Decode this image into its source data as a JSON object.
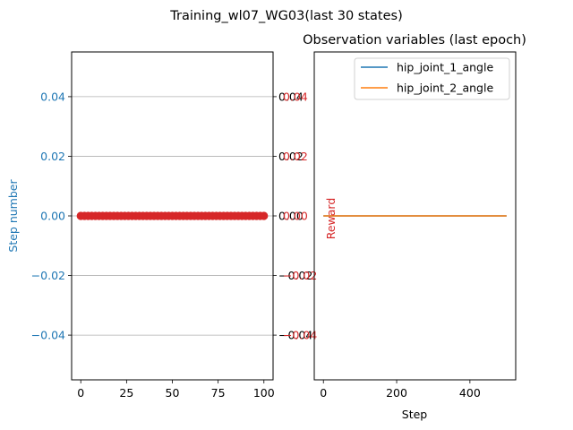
{
  "figure": {
    "suptitle": "Training_wl07_WG03(last 30 states)"
  },
  "colors": {
    "blue": "#1f77b4",
    "orange": "#ff7f0e",
    "red": "#d62728",
    "grid": "#b0b0b0"
  },
  "chart_data": [
    {
      "type": "scatter",
      "title": "",
      "xlabel": "",
      "ylabel": "Step number",
      "ylabel_color": "#1f77b4",
      "ylabel_right": "",
      "xlim": [
        -5,
        105
      ],
      "ylim": [
        -0.055,
        0.055
      ],
      "xticks": [
        0,
        25,
        50,
        75,
        100
      ],
      "yticks": [
        -0.04,
        -0.02,
        0.0,
        0.02,
        0.04
      ],
      "ytick_labels": [
        "−0.04",
        "−0.02",
        "0.00",
        "0.02",
        "0.04"
      ],
      "ytick_color": "#1f77b4",
      "right_ytick_labels_black": [
        "−0.04",
        "−0.02",
        "0.00",
        "0.02",
        "0.04"
      ],
      "right_ytick_labels_red": [
        "−0.04",
        "−0.02",
        "0.00",
        "0.02",
        "0.04"
      ],
      "grid_y": true,
      "series": [
        {
          "marker_color": "#d62728",
          "x": [
            0,
            2,
            4,
            6,
            8,
            10,
            12,
            14,
            16,
            18,
            20,
            22,
            24,
            26,
            28,
            30,
            32,
            34,
            36,
            38,
            40,
            42,
            44,
            46,
            48,
            50,
            52,
            54,
            56,
            58,
            60,
            62,
            64,
            66,
            68,
            70,
            72,
            74,
            76,
            78,
            80,
            82,
            84,
            86,
            88,
            90,
            92,
            94,
            96,
            98,
            100
          ],
          "y": [
            0,
            0,
            0,
            0,
            0,
            0,
            0,
            0,
            0,
            0,
            0,
            0,
            0,
            0,
            0,
            0,
            0,
            0,
            0,
            0,
            0,
            0,
            0,
            0,
            0,
            0,
            0,
            0,
            0,
            0,
            0,
            0,
            0,
            0,
            0,
            0,
            0,
            0,
            0,
            0,
            0,
            0,
            0,
            0,
            0,
            0,
            0,
            0,
            0,
            0,
            0
          ]
        }
      ]
    },
    {
      "type": "line",
      "title": "Observation variables (last epoch)",
      "xlabel": "Step",
      "ylabel": "Reward",
      "ylabel_color": "#d62728",
      "xlim": [
        -25,
        525
      ],
      "ylim": [
        -0.055,
        0.055
      ],
      "xticks": [
        0,
        200,
        400
      ],
      "legend_position": "top-right",
      "series": [
        {
          "name": "hip_joint_1_angle",
          "color": "#1f77b4",
          "x": [
            0,
            500
          ],
          "y": [
            0,
            0
          ]
        },
        {
          "name": "hip_joint_2_angle",
          "color": "#ff7f0e",
          "x": [
            0,
            500
          ],
          "y": [
            0,
            0
          ]
        }
      ]
    }
  ]
}
